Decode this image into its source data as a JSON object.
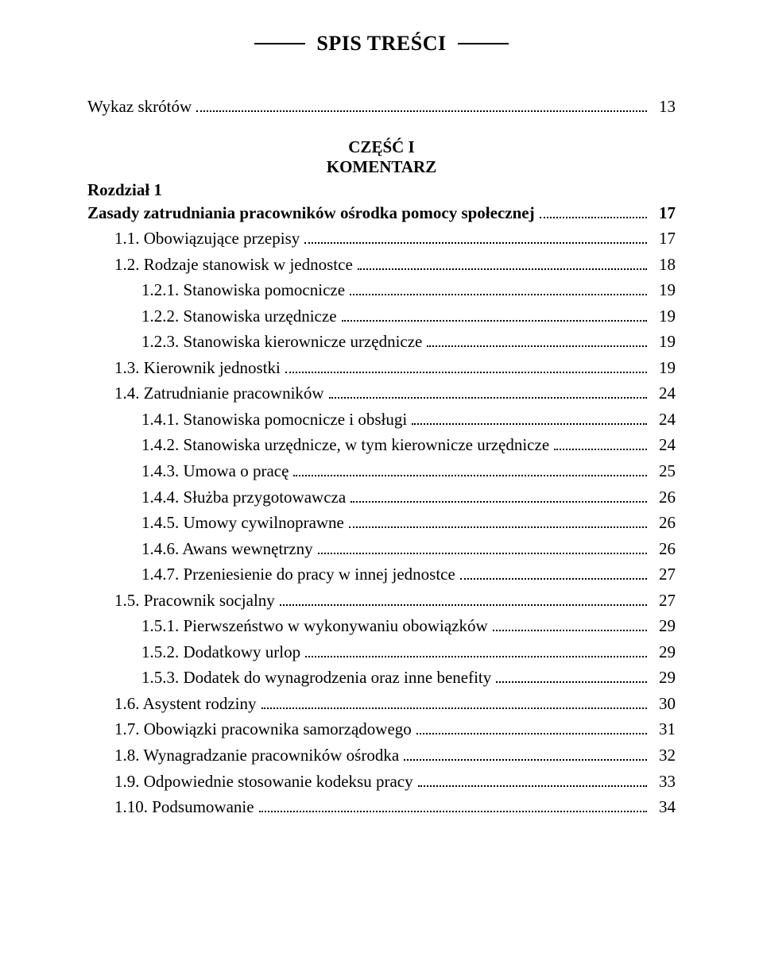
{
  "title": "SPIS TREŚCI",
  "part_heading_l1": "CZĘŚĆ I",
  "part_heading_l2": "KOMENTARZ",
  "chapter_label": "Rozdział 1",
  "entries": [
    {
      "label": "Wykaz skrótów",
      "page": "13",
      "indent": 0
    },
    {
      "label": "Zasady zatrudniania pracowników ośrodka pomocy społecznej",
      "page": "17",
      "indent": 0,
      "bold": true
    },
    {
      "label": "1.1. Obowiązujące przepisy",
      "page": "17",
      "indent": 1
    },
    {
      "label": "1.2. Rodzaje stanowisk w jednostce",
      "page": "18",
      "indent": 1
    },
    {
      "label": "1.2.1. Stanowiska pomocnicze",
      "page": "19",
      "indent": 2
    },
    {
      "label": "1.2.2. Stanowiska urzędnicze",
      "page": "19",
      "indent": 2
    },
    {
      "label": "1.2.3. Stanowiska kierownicze urzędnicze",
      "page": "19",
      "indent": 2
    },
    {
      "label": "1.3. Kierownik jednostki",
      "page": "19",
      "indent": 1
    },
    {
      "label": "1.4. Zatrudnianie pracowników",
      "page": "24",
      "indent": 1
    },
    {
      "label": "1.4.1. Stanowiska pomocnicze i obsługi",
      "page": "24",
      "indent": 2
    },
    {
      "label": "1.4.2. Stanowiska urzędnicze, w tym kierownicze urzędnicze",
      "page": "24",
      "indent": 2
    },
    {
      "label": "1.4.3. Umowa o pracę",
      "page": "25",
      "indent": 2
    },
    {
      "label": "1.4.4. Służba przygotowawcza",
      "page": "26",
      "indent": 2
    },
    {
      "label": "1.4.5. Umowy cywilnoprawne",
      "page": "26",
      "indent": 2
    },
    {
      "label": "1.4.6. Awans wewnętrzny",
      "page": "26",
      "indent": 2
    },
    {
      "label": "1.4.7. Przeniesienie do pracy w innej jednostce",
      "page": "27",
      "indent": 2
    },
    {
      "label": "1.5. Pracownik socjalny",
      "page": "27",
      "indent": 1
    },
    {
      "label": "1.5.1. Pierwszeństwo w wykonywaniu obowiązków",
      "page": "29",
      "indent": 2
    },
    {
      "label": "1.5.2. Dodatkowy urlop",
      "page": "29",
      "indent": 2
    },
    {
      "label": "1.5.3. Dodatek do wynagrodzenia oraz inne benefity",
      "page": "29",
      "indent": 2
    },
    {
      "label": "1.6. Asystent rodziny",
      "page": "30",
      "indent": 1
    },
    {
      "label": "1.7. Obowiązki pracownika samorządowego",
      "page": "31",
      "indent": 1
    },
    {
      "label": "1.8. Wynagradzanie pracowników ośrodka",
      "page": "32",
      "indent": 1
    },
    {
      "label": "1.9. Odpowiednie stosowanie kodeksu pracy",
      "page": "33",
      "indent": 1
    },
    {
      "label": "1.10. Podsumowanie",
      "page": "34",
      "indent": 1
    }
  ]
}
